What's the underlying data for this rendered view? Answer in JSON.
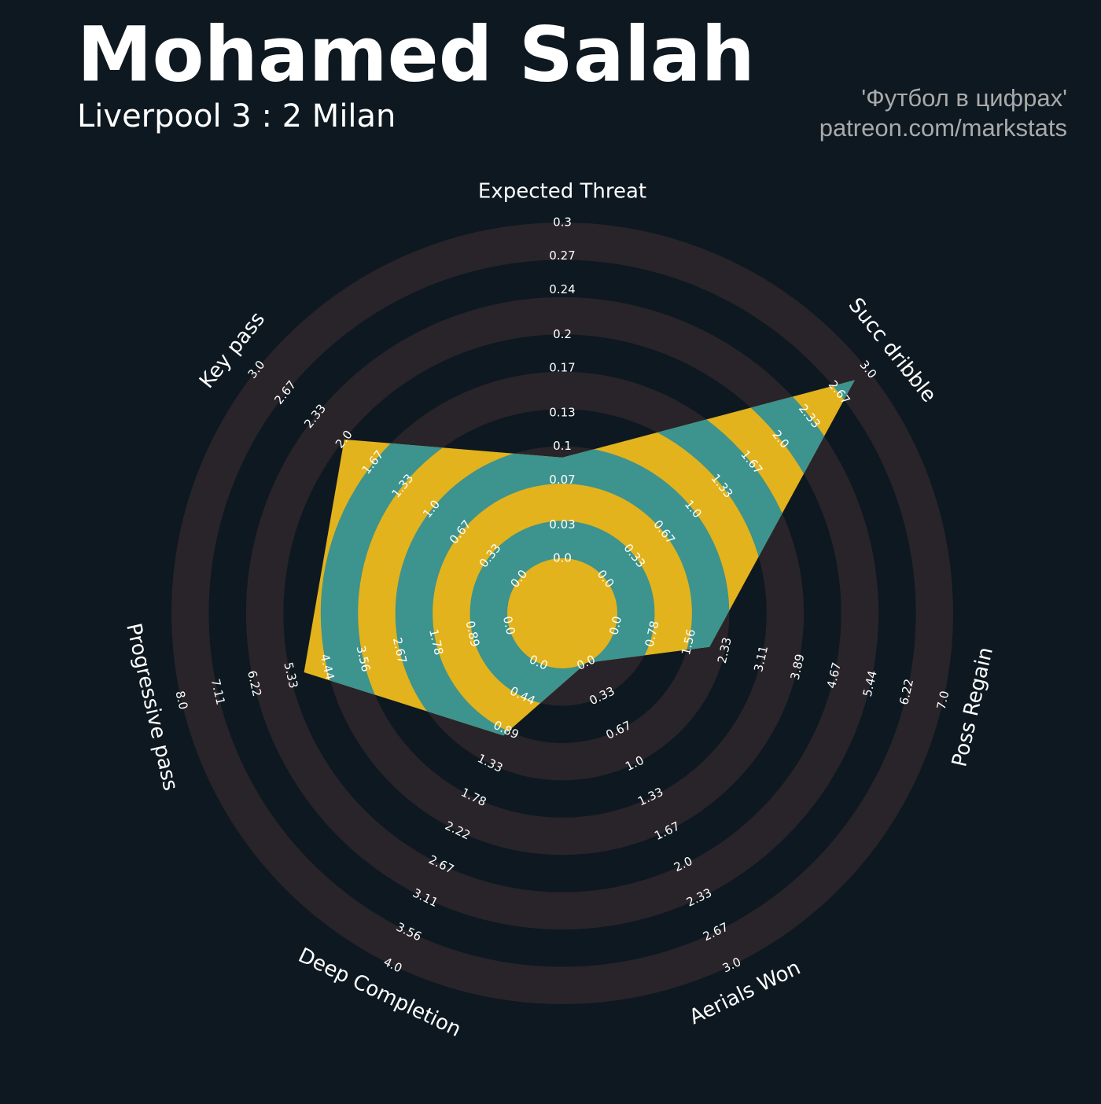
{
  "chart_data": {
    "type": "radar",
    "title": "Mohamed Salah",
    "subtitle": "Liverpool 3 : 2 Milan",
    "credits": [
      "'Футбол в цифрах'",
      "patreon.com/markstats"
    ],
    "colors": {
      "rings_inside": [
        "#3d938e",
        "#e2b31d"
      ],
      "rings_outside": [
        "#28242a",
        "#0e1820"
      ]
    },
    "axes": [
      {
        "label": "Expected Threat",
        "lim": [
          0,
          0.3
        ],
        "ticks": [
          {
            "value": 0,
            "label": "0.0"
          },
          0.03,
          0.07,
          0.1,
          0.13,
          0.17,
          0.2,
          0.24,
          0.27,
          0.3
        ]
      },
      {
        "label": "Succ dribble",
        "lim": [
          0,
          3
        ],
        "ticks": [
          {
            "value": 0,
            "label": "0.0"
          },
          0.33,
          0.67,
          {
            "value": 1,
            "label": "1.0"
          },
          1.33,
          1.67,
          {
            "value": 2,
            "label": "2.0"
          },
          2.33,
          2.67,
          {
            "value": 3,
            "label": "3.0"
          }
        ]
      },
      {
        "label": "Poss Regain",
        "lim": [
          0,
          7
        ],
        "ticks": [
          {
            "value": 0,
            "label": "0.0"
          },
          0.78,
          1.56,
          2.33,
          3.11,
          3.89,
          4.67,
          5.44,
          6.22,
          {
            "value": 7,
            "label": "7.0"
          }
        ]
      },
      {
        "label": "Aerials Won",
        "lim": [
          0,
          3
        ],
        "ticks": [
          {
            "value": 0,
            "label": "0.0"
          },
          0.33,
          0.67,
          {
            "value": 1,
            "label": "1.0"
          },
          1.33,
          1.67,
          {
            "value": 2,
            "label": "2.0"
          },
          2.33,
          2.67,
          {
            "value": 3,
            "label": "3.0"
          }
        ]
      },
      {
        "label": "Deep Completion",
        "lim": [
          0,
          4
        ],
        "ticks": [
          {
            "value": 0,
            "label": "0.0"
          },
          0.44,
          0.89,
          1.33,
          1.78,
          2.22,
          2.67,
          3.11,
          3.56,
          {
            "value": 4,
            "label": "4.0"
          }
        ]
      },
      {
        "label": "Progressive pass",
        "lim": [
          0,
          8
        ],
        "ticks": [
          {
            "value": 0,
            "label": "0.0"
          },
          0.89,
          1.78,
          2.67,
          3.56,
          4.44,
          5.33,
          6.22,
          7.11,
          {
            "value": 8,
            "label": "8.0"
          }
        ]
      },
      {
        "label": "Key pass",
        "lim": [
          0,
          3
        ],
        "ticks": [
          {
            "value": 0,
            "label": "0.0"
          },
          0.33,
          0.67,
          {
            "value": 1,
            "label": "1.0"
          },
          1.33,
          1.67,
          {
            "value": 2,
            "label": "2.0"
          },
          2.33,
          2.67,
          {
            "value": 3,
            "label": "3.0"
          }
        ]
      }
    ],
    "values": [
      0.09,
      2.85,
      2.0,
      0,
      0.96,
      5.0,
      2.0
    ]
  }
}
